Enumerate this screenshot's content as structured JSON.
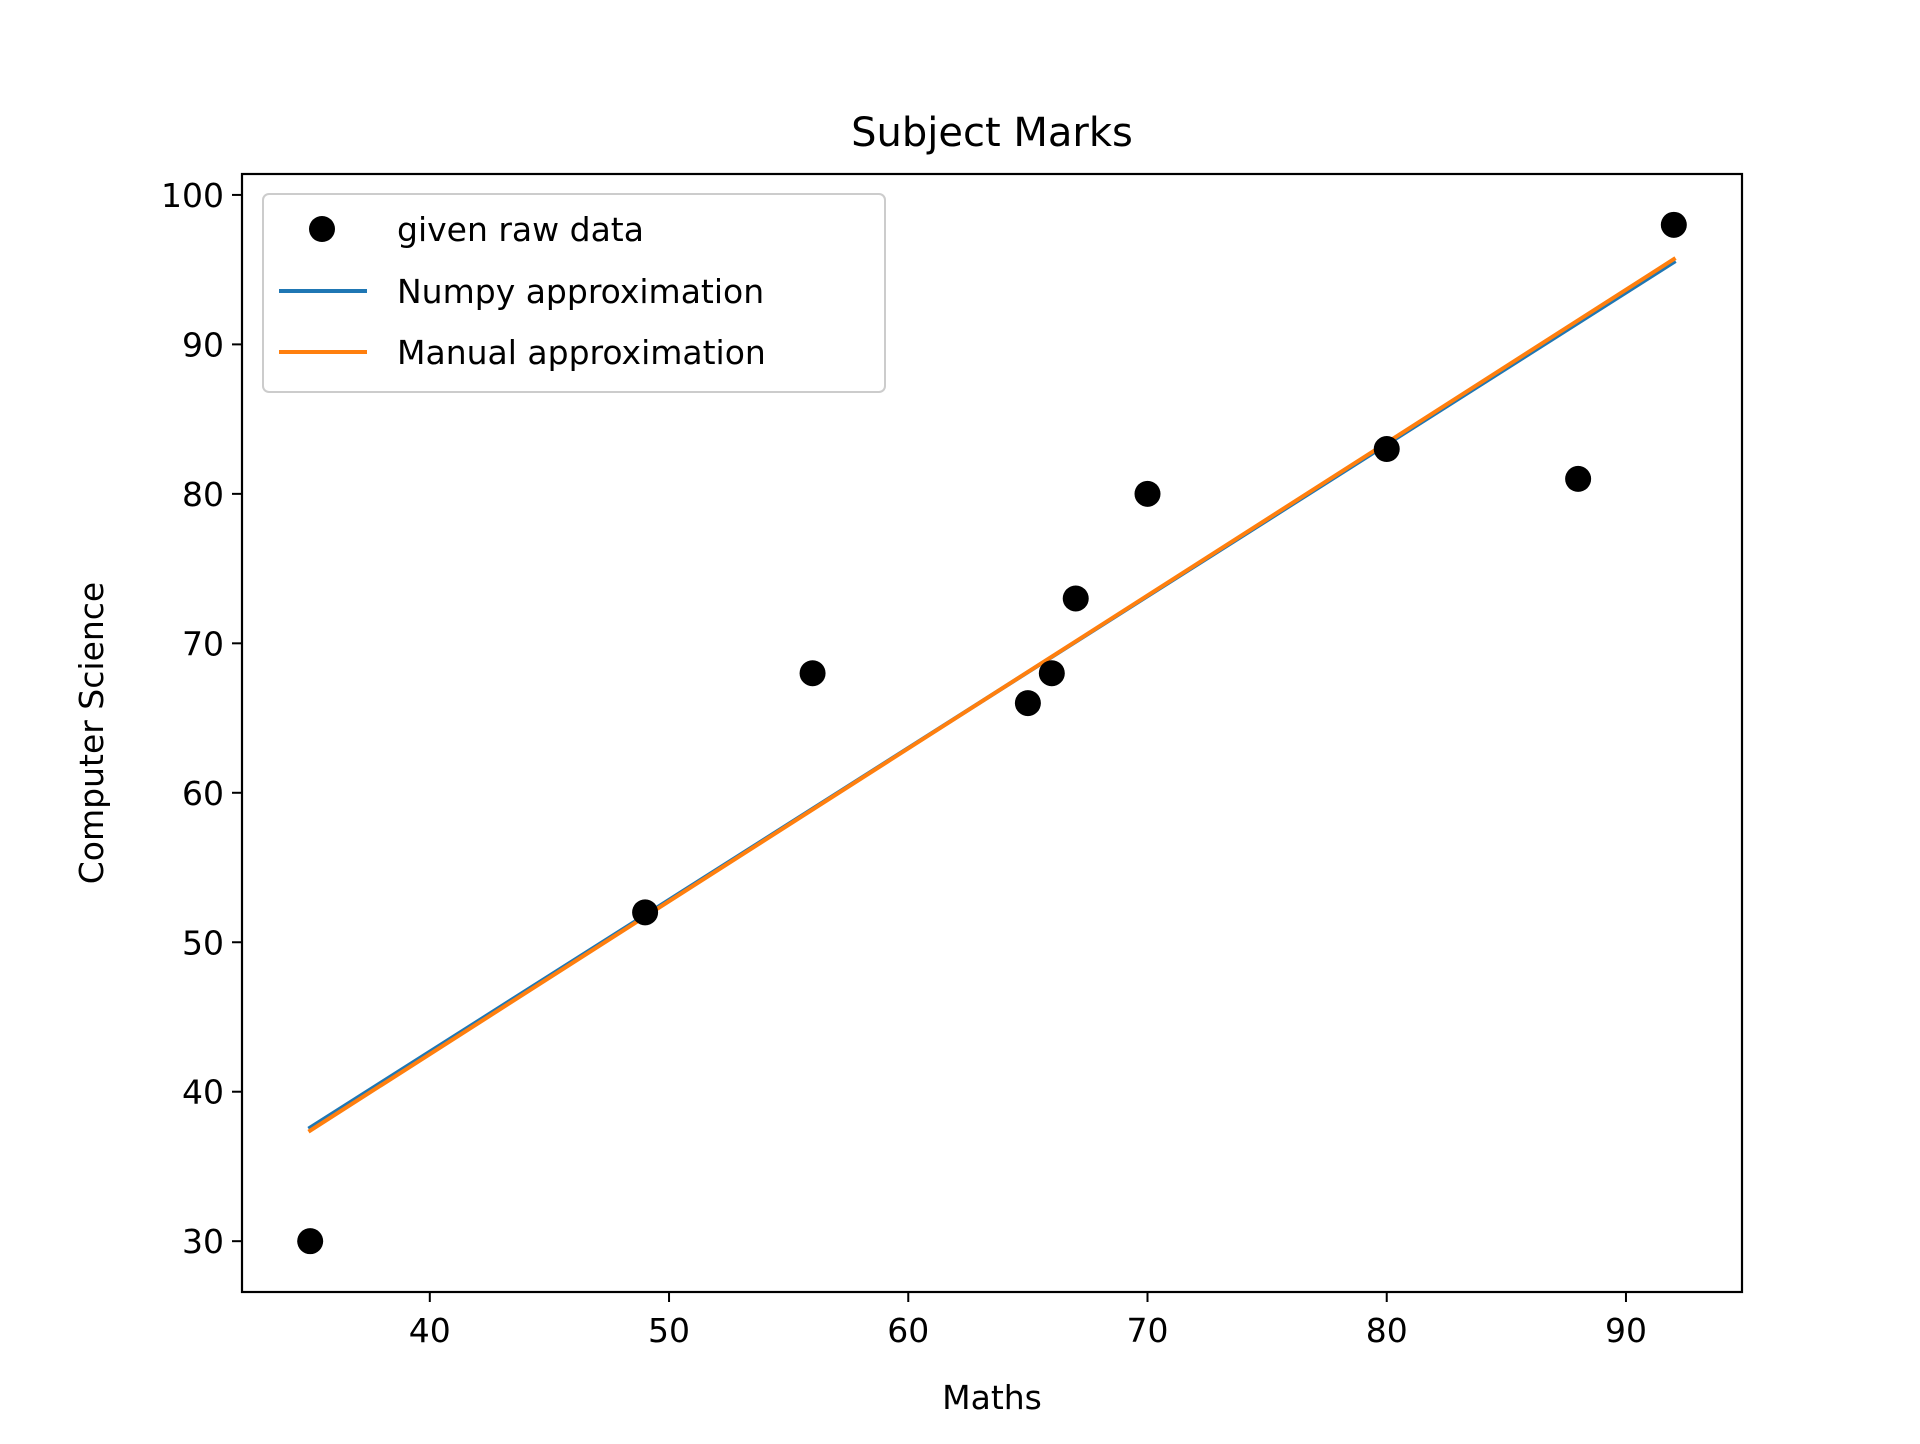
{
  "chart_data": {
    "type": "scatter",
    "title": "Subject Marks",
    "xlabel": "Maths",
    "ylabel": "Computer Science",
    "xlim": [
      32.15,
      94.85
    ],
    "ylim": [
      26.6,
      101.4
    ],
    "xticks": [
      40,
      50,
      60,
      70,
      80,
      90
    ],
    "yticks": [
      30,
      40,
      50,
      60,
      70,
      80,
      90,
      100
    ],
    "grid": false,
    "legend_position": "upper left",
    "series": [
      {
        "name": "given raw data",
        "kind": "scatter",
        "color": "#000000",
        "points": [
          {
            "x": 35,
            "y": 30
          },
          {
            "x": 49,
            "y": 52
          },
          {
            "x": 56,
            "y": 68
          },
          {
            "x": 65,
            "y": 66
          },
          {
            "x": 66,
            "y": 68
          },
          {
            "x": 67,
            "y": 73
          },
          {
            "x": 70,
            "y": 80
          },
          {
            "x": 80,
            "y": 83
          },
          {
            "x": 88,
            "y": 81
          },
          {
            "x": 92,
            "y": 98
          }
        ]
      },
      {
        "name": "Numpy approximation",
        "kind": "line",
        "color": "#1f77b4",
        "points": [
          {
            "x": 35,
            "y": 37.6
          },
          {
            "x": 92,
            "y": 95.5
          }
        ]
      },
      {
        "name": "Manual approximation",
        "kind": "line",
        "color": "#ff7f0e",
        "points": [
          {
            "x": 35,
            "y": 37.4
          },
          {
            "x": 92,
            "y": 95.7
          }
        ]
      }
    ]
  }
}
